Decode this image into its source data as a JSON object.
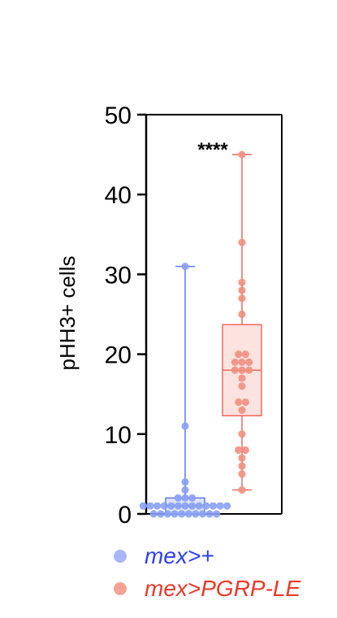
{
  "chart_data": {
    "type": "box",
    "ylabel": "pHH3+ cells",
    "ylim": [
      0,
      50
    ],
    "yticks": [
      0,
      10,
      20,
      30,
      40,
      50
    ],
    "annotation": "****",
    "series": [
      {
        "name": "mex>+",
        "color": "#5b78f0",
        "point_color": "#8aa0f5",
        "fill": "#dde4fd",
        "box": {
          "min": 0,
          "q1": 0,
          "median": 1,
          "q3": 2,
          "max": 31
        },
        "points": [
          31,
          11,
          4,
          3,
          2,
          2,
          2,
          1,
          1,
          1,
          1,
          1,
          1,
          1,
          1,
          1,
          1,
          1,
          1,
          1,
          0,
          0,
          0,
          0,
          0,
          0,
          0,
          0,
          0,
          0
        ]
      },
      {
        "name": "mex>PGRP-LE",
        "color": "#ee6b5b",
        "point_color": "#f08f82",
        "fill": "#fde3df",
        "box": {
          "min": 3,
          "q1": 12.3,
          "median": 18,
          "q3": 23.7,
          "max": 45
        },
        "points": [
          45,
          34,
          29,
          28,
          27,
          25,
          20,
          20,
          19,
          19,
          19,
          18,
          18,
          18,
          17,
          16,
          14,
          14,
          13,
          10,
          8,
          8,
          7,
          6,
          5,
          3
        ]
      }
    ]
  }
}
